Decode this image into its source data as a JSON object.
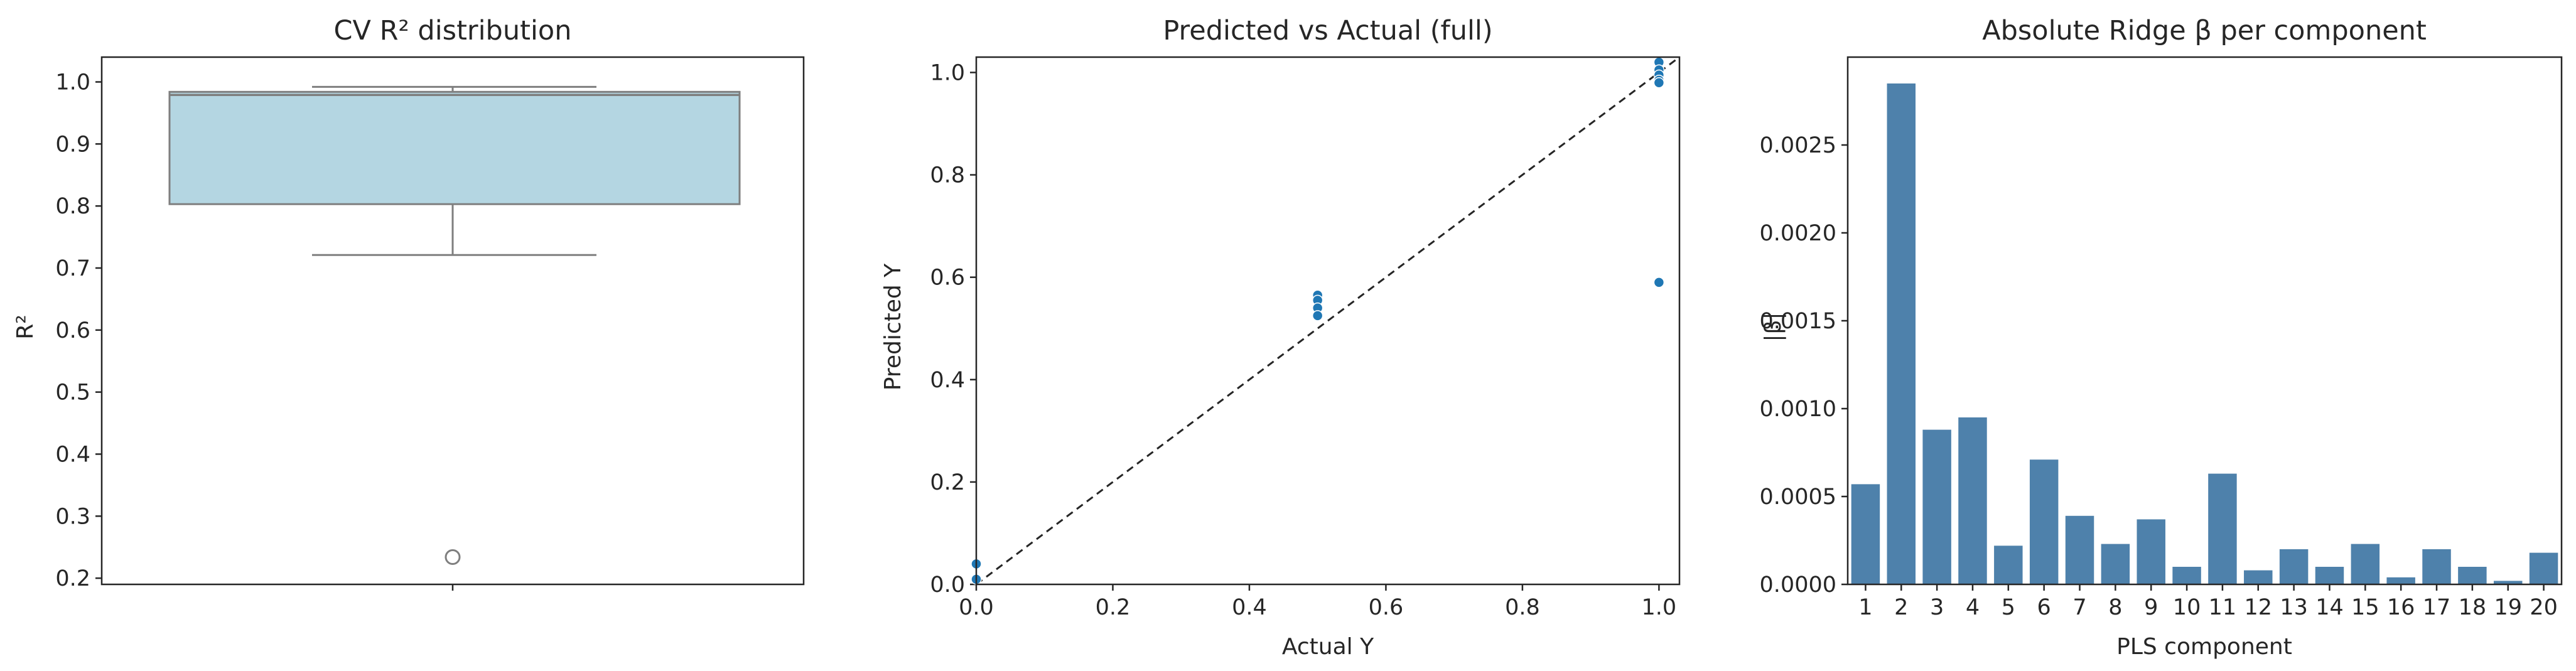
{
  "chart_data": [
    {
      "type": "box",
      "title": "CV R² distribution",
      "xlabel": "",
      "ylabel": "R²",
      "ylim": [
        0.19,
        1.04
      ],
      "yticks": [
        0.2,
        0.3,
        0.4,
        0.5,
        0.6,
        0.7,
        0.8,
        0.9,
        1.0
      ],
      "ytick_labels": [
        "0.2",
        "0.3",
        "0.4",
        "0.5",
        "0.6",
        "0.7",
        "0.8",
        "0.9",
        "1.0"
      ],
      "box": {
        "whisker_low": 0.721,
        "q1": 0.803,
        "median": 0.979,
        "q3": 0.984,
        "whisker_high": 0.992
      },
      "outliers": [
        0.234
      ],
      "colors": {
        "box_fill": "#b4d6e2",
        "box_edge": "#7f7f7f",
        "outlier_edge": "#7f7f7f"
      }
    },
    {
      "type": "scatter",
      "title": "Predicted vs Actual (full)",
      "xlabel": "Actual Y",
      "ylabel": "Predicted Y",
      "xlim": [
        0.0,
        1.03
      ],
      "ylim": [
        0.0,
        1.03
      ],
      "xticks": [
        0.0,
        0.2,
        0.4,
        0.6,
        0.8,
        1.0
      ],
      "xtick_labels": [
        "0.0",
        "0.2",
        "0.4",
        "0.6",
        "0.8",
        "1.0"
      ],
      "yticks": [
        0.0,
        0.2,
        0.4,
        0.6,
        0.8,
        1.0
      ],
      "ytick_labels": [
        "0.0",
        "0.2",
        "0.4",
        "0.6",
        "0.8",
        "1.0"
      ],
      "points": [
        {
          "x": 0.0,
          "y": 0.04
        },
        {
          "x": 0.0,
          "y": 0.01
        },
        {
          "x": 0.5,
          "y": 0.565
        },
        {
          "x": 0.5,
          "y": 0.555
        },
        {
          "x": 0.5,
          "y": 0.54
        },
        {
          "x": 0.5,
          "y": 0.525
        },
        {
          "x": 1.0,
          "y": 1.02
        },
        {
          "x": 1.0,
          "y": 1.005
        },
        {
          "x": 1.0,
          "y": 0.995
        },
        {
          "x": 1.0,
          "y": 0.985
        },
        {
          "x": 1.0,
          "y": 0.98
        },
        {
          "x": 1.0,
          "y": 0.59
        }
      ],
      "reference_line": {
        "from": [
          0.0,
          0.0
        ],
        "to": [
          1.03,
          1.03
        ],
        "style": "dashed",
        "color": "#262626"
      },
      "colors": {
        "point": "#1f77b4"
      }
    },
    {
      "type": "bar",
      "title": "Absolute Ridge β per component",
      "xlabel": "PLS component",
      "ylabel": "|β|",
      "ylim": [
        0.0,
        0.003
      ],
      "yticks": [
        0.0,
        0.0005,
        0.001,
        0.0015,
        0.002,
        0.0025
      ],
      "ytick_labels": [
        "0.0000",
        "0.0005",
        "0.0010",
        "0.0015",
        "0.0020",
        "0.0025"
      ],
      "categories": [
        "1",
        "2",
        "3",
        "4",
        "5",
        "6",
        "7",
        "8",
        "9",
        "10",
        "11",
        "12",
        "13",
        "14",
        "15",
        "16",
        "17",
        "18",
        "19",
        "20"
      ],
      "values": [
        0.00057,
        0.00285,
        0.00088,
        0.00095,
        0.00022,
        0.00071,
        0.00039,
        0.00023,
        0.00037,
        0.0001,
        0.00063,
        8e-05,
        0.0002,
        0.0001,
        0.00023,
        4e-05,
        0.0002,
        0.0001,
        2e-05,
        0.00018
      ],
      "colors": {
        "bar": "#4e81ab"
      }
    }
  ]
}
